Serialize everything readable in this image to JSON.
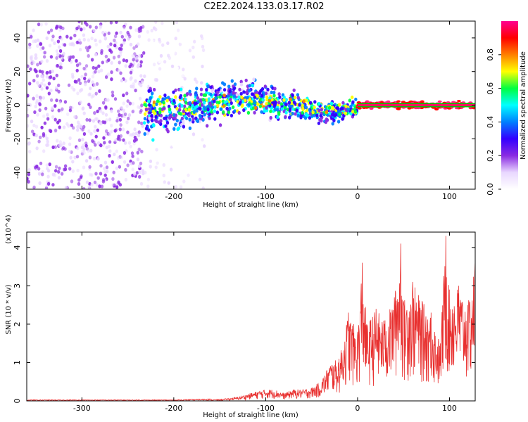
{
  "title": "C2E2.2024.133.03.17.R02",
  "chart_data": [
    {
      "type": "heatmap",
      "xlabel": "Height of straight line (km)",
      "ylabel": "Frequency (Hz)",
      "xlim": [
        -360,
        128
      ],
      "ylim": [
        -50,
        50
      ],
      "xticks": [
        -300,
        -200,
        -100,
        0,
        100
      ],
      "yticks": [
        -40,
        -20,
        0,
        20,
        40
      ],
      "colorbar": {
        "label": "Normalized spectral amplitude",
        "range": [
          0,
          1
        ],
        "ticks": [
          "0.0",
          "0.2",
          "0.4",
          "0.6",
          "0.8"
        ],
        "colors": [
          "#ffffff",
          "#e9d7ff",
          "#8a2be2",
          "#3300ff",
          "#0080ff",
          "#00ffff",
          "#00ff40",
          "#ffff00",
          "#ff8000",
          "#ff0000",
          "#ff0090"
        ]
      },
      "regions": [
        {
          "x": [
            -360,
            -232
          ],
          "freq_spread": 50,
          "amplitude": 0.15,
          "description": "dense noise"
        },
        {
          "x": [
            -232,
            -165
          ],
          "freq_spread": 50,
          "amplitude": 0.06,
          "description": "sparse noise"
        },
        {
          "x": [
            -232,
            0
          ],
          "freq_center": 0,
          "freq_spread": 15,
          "amplitude": 0.3,
          "description": "signal band"
        },
        {
          "x": [
            0,
            128
          ],
          "freq_center": 0,
          "freq_spread": 2,
          "amplitude": 1.0,
          "description": "narrow strong line"
        }
      ]
    },
    {
      "type": "line",
      "xlabel": "Height of straight line (km)",
      "ylabel": "SNR (10 * v/v)",
      "y_multiplier": "(x10^4)",
      "xlim": [
        -360,
        128
      ],
      "ylim": [
        0,
        4.4
      ],
      "xticks": [
        -300,
        -200,
        -100,
        0,
        100
      ],
      "yticks": [
        0,
        1,
        2,
        3,
        4
      ],
      "color": "#e8302f",
      "series": [
        {
          "x": [
            -360,
            -300,
            -250,
            -200,
            -150,
            -130,
            -110,
            -100,
            -90,
            -80,
            -70,
            -60,
            -50,
            -40,
            -30,
            -20,
            -10,
            0,
            5,
            10,
            20,
            30,
            40,
            47,
            50,
            60,
            70,
            80,
            90,
            96,
            100,
            110,
            120,
            128
          ],
          "y": [
            0.02,
            0.02,
            0.02,
            0.02,
            0.04,
            0.1,
            0.25,
            0.3,
            0.3,
            0.2,
            0.3,
            0.3,
            0.35,
            0.5,
            1.0,
            1.1,
            2.3,
            1.8,
            3.6,
            2.0,
            2.4,
            2.1,
            2.7,
            4.1,
            2.6,
            3.1,
            2.6,
            2.3,
            1.5,
            4.3,
            2.9,
            3.0,
            2.5,
            3.6
          ]
        }
      ]
    }
  ]
}
